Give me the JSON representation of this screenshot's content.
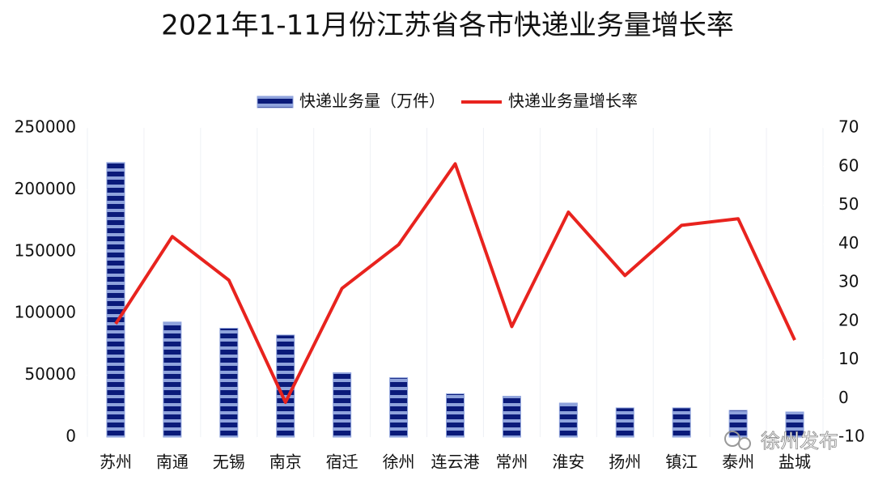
{
  "chart_data": {
    "type": "bar",
    "title": "2021年1-11月份江苏省各市快递业务量增长率",
    "categories": [
      "苏州",
      "南通",
      "无锡",
      "南京",
      "宿迁",
      "徐州",
      "连云港",
      "常州",
      "淮安",
      "扬州",
      "镇江",
      "泰州",
      "盐城"
    ],
    "series": [
      {
        "name": "快递业务量（万件）",
        "type": "bar",
        "color": "#8fa3dc",
        "values": [
          222000,
          93000,
          88000,
          82500,
          52000,
          48000,
          35000,
          33000,
          27500,
          23600,
          23600,
          21600,
          20300
        ]
      },
      {
        "name": "快递业务量增长率",
        "type": "line",
        "axis": "y2",
        "color": "#e8231e",
        "values": [
          19.3,
          41.9,
          30.6,
          -1,
          28.5,
          39.8,
          60.7,
          18.6,
          48.2,
          31.8,
          44.8,
          46.5,
          15.1
        ]
      }
    ],
    "ylim": [
      0,
      250000
    ],
    "yticks": [
      0,
      50000,
      100000,
      150000,
      200000,
      250000
    ],
    "y2lim": [
      -10,
      70
    ],
    "y2ticks": [
      -10,
      0,
      10,
      20,
      30,
      40,
      50,
      60,
      70
    ],
    "legend": "top",
    "watermark": "徐州发布"
  }
}
